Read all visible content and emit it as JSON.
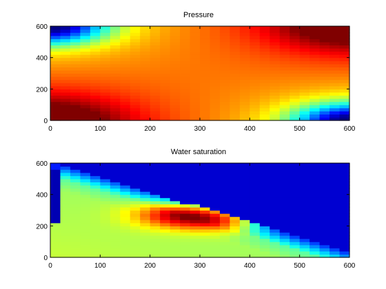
{
  "chart_data": [
    {
      "type": "heatmap",
      "title": "Pressure",
      "xlabel": "",
      "ylabel": "",
      "xlim": [
        0,
        600
      ],
      "ylim": [
        0,
        600
      ],
      "xticks": [
        0,
        100,
        200,
        300,
        400,
        500,
        600
      ],
      "yticks": [
        0,
        200,
        400,
        600
      ],
      "grid_cells": [
        30,
        30
      ],
      "colormap": "jet",
      "value_range": [
        0,
        1
      ],
      "features": [
        {
          "name": "high-pressure-injector-corner",
          "x": 0,
          "y": 0,
          "level": 0.96
        },
        {
          "name": "low-pressure-top-left",
          "x": 0,
          "y": 600,
          "level": 0.06
        },
        {
          "name": "high-pressure-top-right",
          "x": 600,
          "y": 600,
          "level": 0.98
        },
        {
          "name": "low-pressure-producer-corner",
          "x": 600,
          "y": 0,
          "level": 0.04
        }
      ]
    },
    {
      "type": "heatmap",
      "title": "Water saturation",
      "xlabel": "",
      "ylabel": "",
      "xlim": [
        0,
        600
      ],
      "ylim": [
        0,
        600
      ],
      "xticks": [
        0,
        100,
        200,
        300,
        400,
        500,
        600
      ],
      "yticks": [
        0,
        200,
        400,
        600
      ],
      "grid_cells": [
        30,
        30
      ],
      "colormap": "jet",
      "value_range": [
        0,
        1
      ],
      "features": [
        {
          "name": "saturation-peak",
          "x": 290,
          "y": 300,
          "level": 0.98
        },
        {
          "name": "front-upper-left",
          "x": 20,
          "y": 580
        },
        {
          "name": "front-lower-right",
          "x": 600,
          "y": 20
        },
        {
          "name": "injection-column",
          "x": 10,
          "y": 400,
          "level": 0.05
        }
      ]
    }
  ]
}
